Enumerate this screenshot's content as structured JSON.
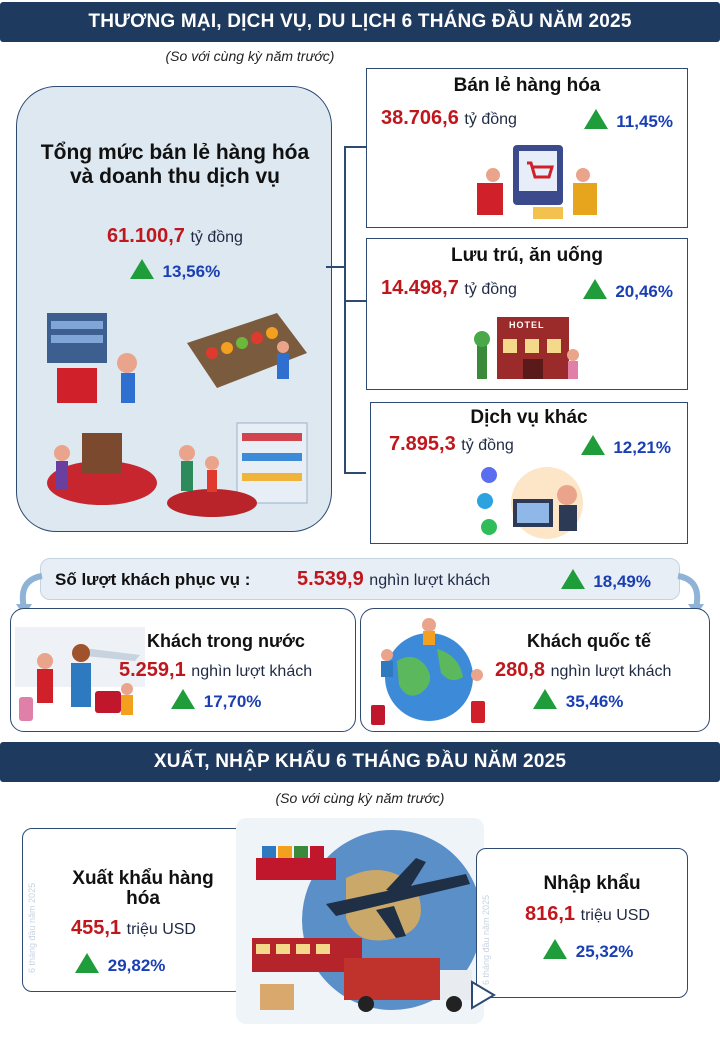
{
  "trade": {
    "banner": "THƯƠNG MẠI, DỊCH VỤ, DU LỊCH 6 THÁNG ĐẦU NĂM 2025",
    "note": "(So với cùng kỳ năm trước)",
    "total": {
      "title": "Tổng mức bán lẻ hàng hóa và doanh thu dịch vụ",
      "value": "61.100,7",
      "unit": "tỷ đồng",
      "change": "13,56%"
    },
    "retail": {
      "title": "Bán lẻ hàng hóa",
      "value": "38.706,6",
      "unit": "tỷ đồng",
      "change": "11,45%"
    },
    "lodging": {
      "title": "Lưu trú, ăn uống",
      "value": "14.498,7",
      "unit": "tỷ đồng",
      "change": "20,46%",
      "hotel_sign": "HOTEL"
    },
    "other": {
      "title": "Dịch vụ khác",
      "value": "7.895,3",
      "unit": "tỷ đồng",
      "change": "12,21%"
    }
  },
  "visitors": {
    "label": "Số lượt khách phục vụ :",
    "value": "5.539,9",
    "unit": "nghìn lượt khách",
    "change": "18,49%",
    "domestic": {
      "title": "Khách trong nước",
      "value": "5.259,1",
      "unit": "nghìn lượt khách",
      "change": "17,70%"
    },
    "international": {
      "title": "Khách quốc tế",
      "value": "280,8",
      "unit": "nghìn lượt khách",
      "change": "35,46%"
    }
  },
  "exim": {
    "banner": "XUẤT, NHẬP KHẨU 6 THÁNG ĐẦU NĂM 2025",
    "note": "(So với cùng kỳ năm trước)",
    "export": {
      "title": "Xuất khẩu hàng hóa",
      "value": "455,1",
      "unit": "triệu USD",
      "change": "29,82%"
    },
    "import": {
      "title": "Nhập khẩu",
      "value": "816,1",
      "unit": "triệu USD",
      "change": "25,32%"
    },
    "side_label": "6 tháng đầu năm 2025"
  },
  "colors": {
    "banner": "#1e3a5f",
    "value_red": "#c0171d",
    "change_blue": "#1a3fb3",
    "up_green": "#1f9d3a"
  },
  "icons": [
    "up-arrow-icon",
    "shopping-icon",
    "hotel-icon",
    "services-icon",
    "travel-icon",
    "globe-icon",
    "airplane-icon",
    "ship-icon",
    "train-icon",
    "truck-icon"
  ]
}
